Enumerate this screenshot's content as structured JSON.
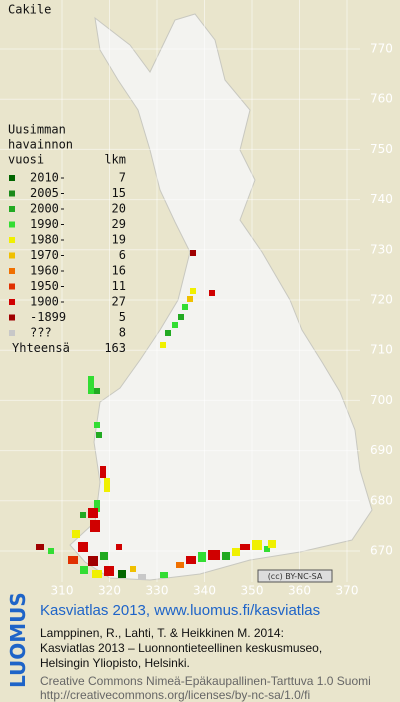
{
  "title": "Cakile",
  "legend": {
    "heading": [
      "Uusimman",
      "havainnon",
      "vuosi"
    ],
    "count_heading": "lkm",
    "rows": [
      {
        "label": "2010-",
        "count": 7,
        "color": "#006400"
      },
      {
        "label": "2005-",
        "count": 15,
        "color": "#1a8a1a"
      },
      {
        "label": "2000-",
        "count": 20,
        "color": "#22aa22"
      },
      {
        "label": "1990-",
        "count": 29,
        "color": "#33dd33"
      },
      {
        "label": "1980-",
        "count": 19,
        "color": "#f0f000"
      },
      {
        "label": "1970-",
        "count": 6,
        "color": "#f0c000"
      },
      {
        "label": "1960-",
        "count": 16,
        "color": "#f07000"
      },
      {
        "label": "1950-",
        "count": 11,
        "color": "#e03000"
      },
      {
        "label": "1900-",
        "count": 27,
        "color": "#d00000"
      },
      {
        "label": "-1899",
        "count": 5,
        "color": "#a00000"
      },
      {
        "label": "???",
        "count": 8,
        "color": "#c8c8c8"
      }
    ],
    "total_label": "Yhteensä",
    "total": 163
  },
  "northing_labels": [
    770,
    760,
    750,
    740,
    730,
    720,
    710,
    700,
    690,
    680,
    670
  ],
  "easting_labels": [
    310,
    320,
    330,
    340,
    350,
    360,
    370
  ],
  "badge": "(cc) BY-NC-SA",
  "footer": {
    "logo": "LUOMUS",
    "link": "Kasviatlas 2013, www.luomus.fi/kasviatlas",
    "citation": [
      "Lamppinen, R., Lahti, T. & Heikkinen M. 2014:",
      "Kasviatlas 2013 – Luonnontieteellinen keskusmuseo,",
      "Helsingin Yliopisto, Helsinki."
    ],
    "license": [
      "Creative Commons Nimeä-Epäkaupallinen-Tarttuva 1.0 Suomi",
      "http://creativecommons.org/licenses/by-nc-sa/1.0/fi"
    ]
  }
}
